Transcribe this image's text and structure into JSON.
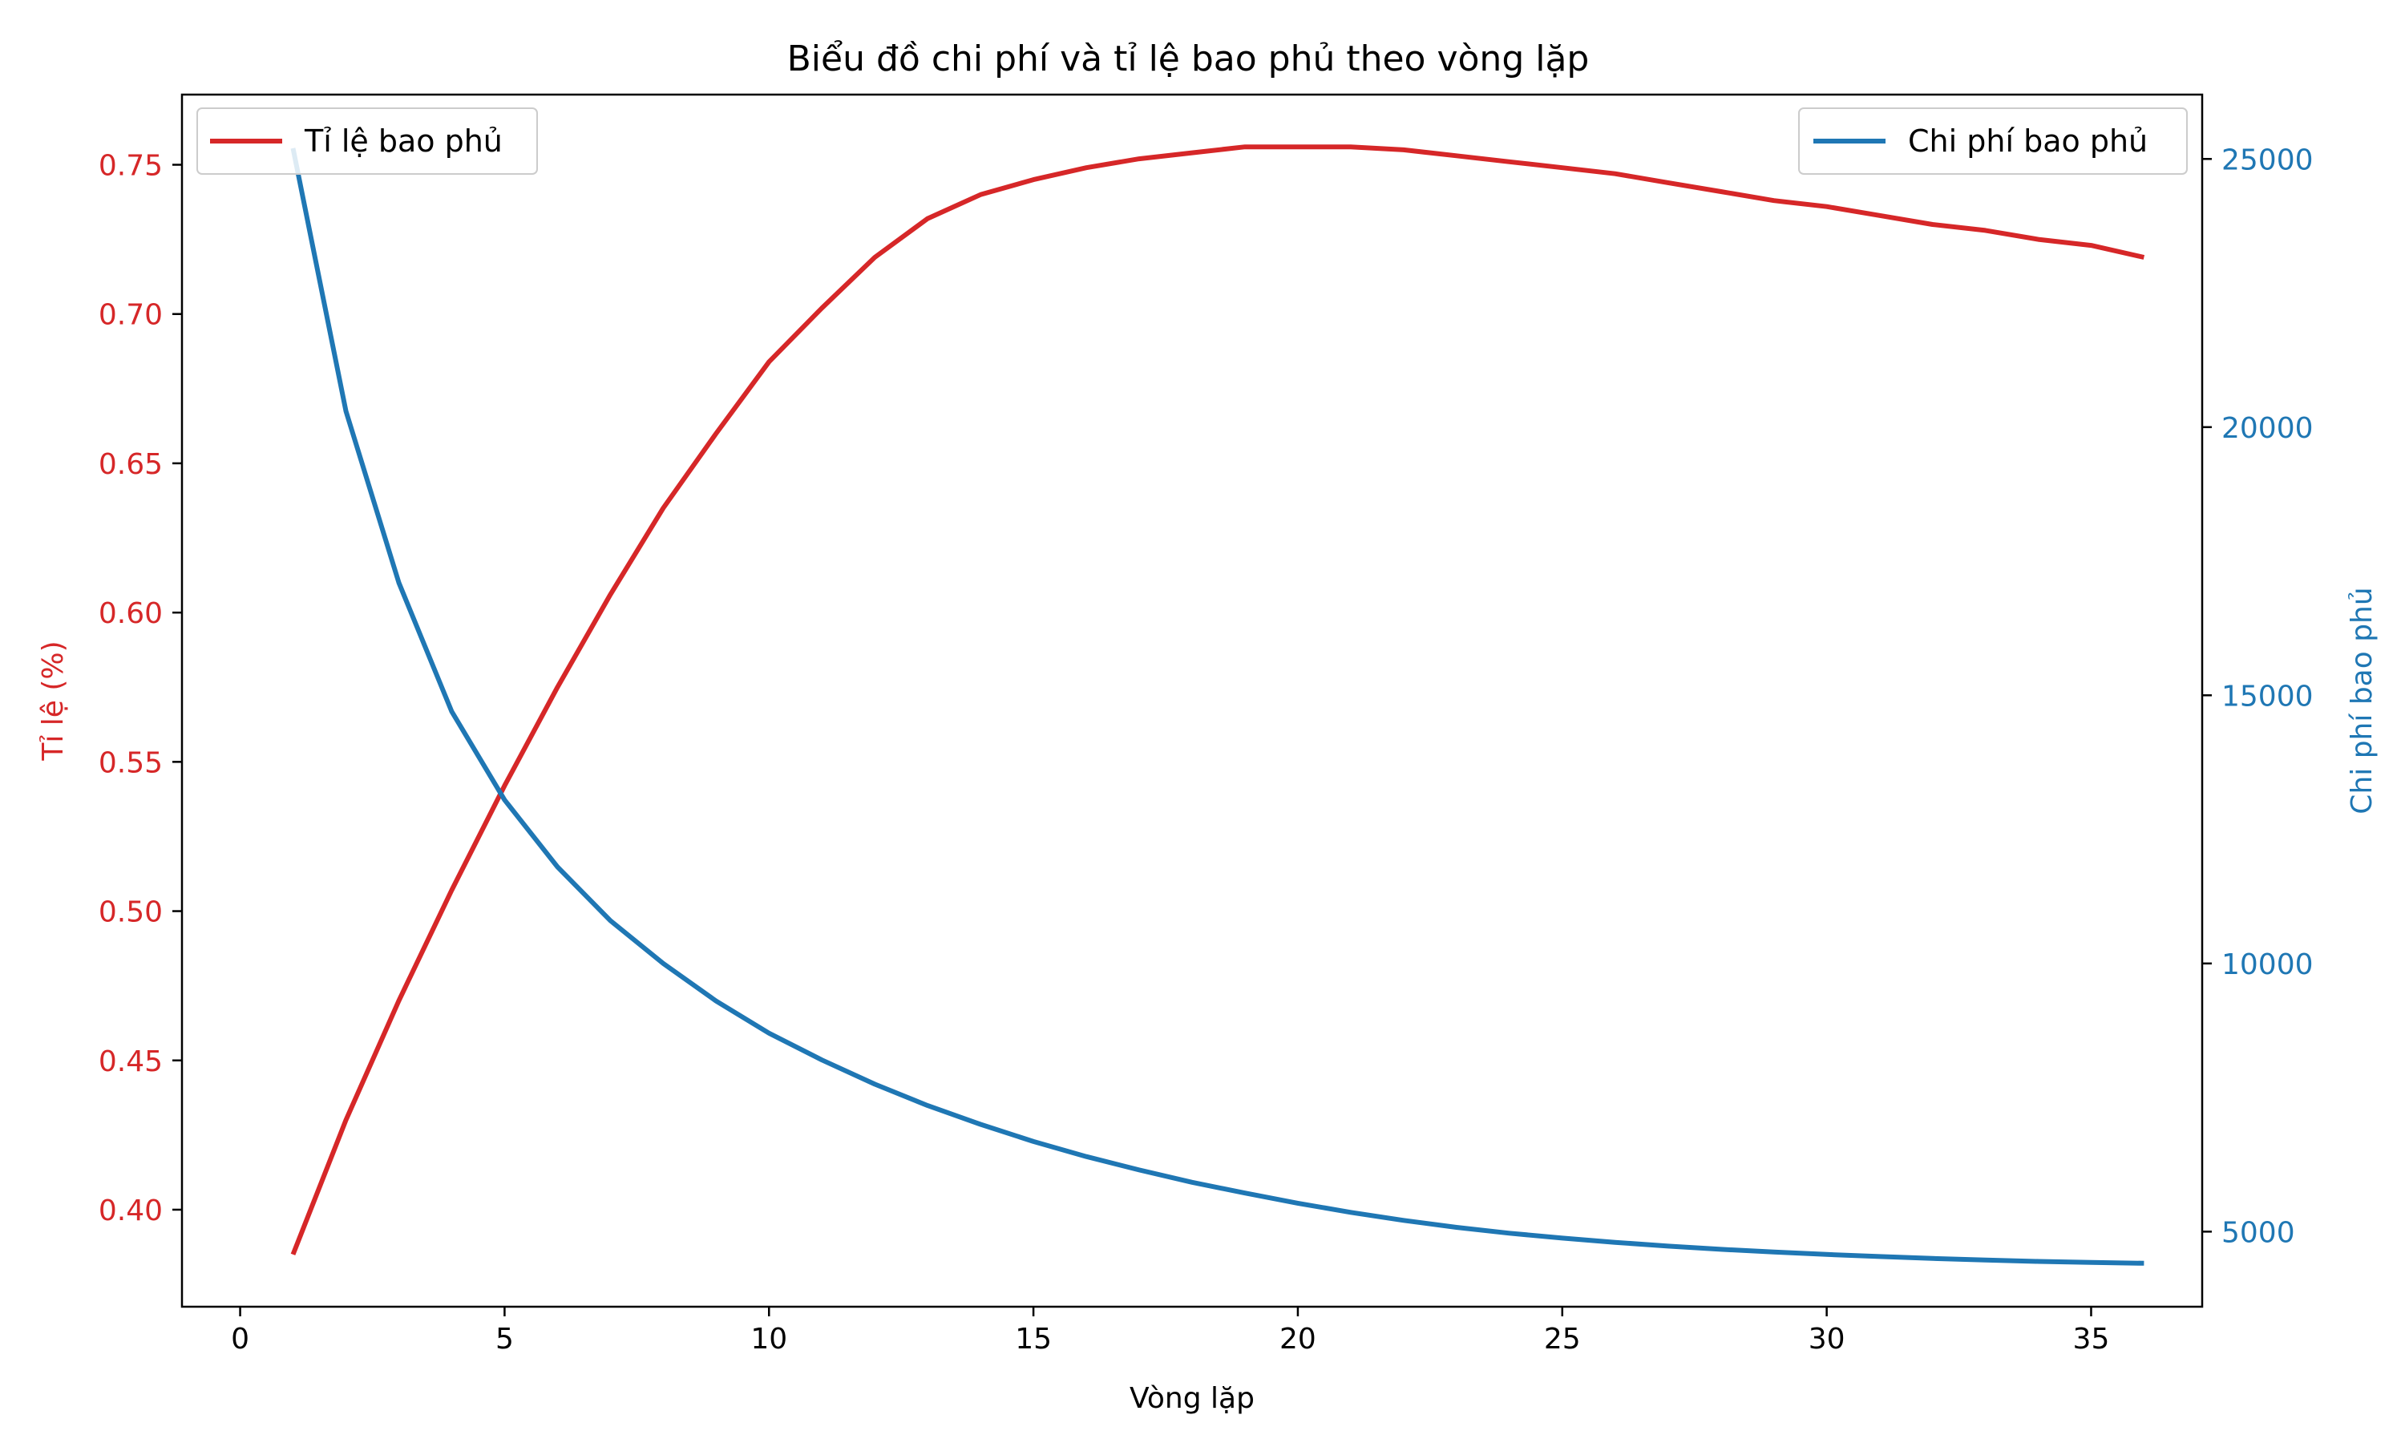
{
  "chart_data": {
    "type": "line",
    "title": "Biểu đồ chi phí và tỉ lệ bao phủ theo vòng lặp",
    "xlabel": "Vòng lặp",
    "ylabel_left": "Tỉ lệ (%)",
    "ylabel_right": "Chi phí bao phủ",
    "xlim": [
      -1.1,
      37.1
    ],
    "ylim_left": [
      0.3675,
      0.7735
    ],
    "ylim_right": [
      3600,
      26200
    ],
    "x_ticks": [
      0,
      5,
      10,
      15,
      20,
      25,
      30,
      35
    ],
    "y_left_ticks": [
      "0.40",
      "0.45",
      "0.50",
      "0.55",
      "0.60",
      "0.65",
      "0.70",
      "0.75"
    ],
    "y_right_ticks": [
      5000,
      10000,
      15000,
      20000,
      25000
    ],
    "grid": false,
    "x": [
      1,
      2,
      3,
      4,
      5,
      6,
      7,
      8,
      9,
      10,
      11,
      12,
      13,
      14,
      15,
      16,
      17,
      18,
      19,
      20,
      21,
      22,
      23,
      24,
      25,
      26,
      27,
      28,
      29,
      30,
      31,
      32,
      33,
      34,
      35,
      36
    ],
    "series": [
      {
        "name": "Tỉ lệ bao phủ",
        "axis": "left",
        "color": "#d62728",
        "values": [
          0.385,
          0.43,
          0.47,
          0.507,
          0.542,
          0.575,
          0.606,
          0.635,
          0.66,
          0.684,
          0.702,
          0.719,
          0.732,
          0.74,
          0.745,
          0.749,
          0.752,
          0.754,
          0.756,
          0.756,
          0.756,
          0.755,
          0.753,
          0.751,
          0.749,
          0.747,
          0.744,
          0.741,
          0.738,
          0.736,
          0.733,
          0.73,
          0.728,
          0.725,
          0.723,
          0.719
        ]
      },
      {
        "name": "Chi phí bao phủ",
        "axis": "right",
        "color": "#1f77b4",
        "values": [
          25200,
          20300,
          17100,
          14700,
          13050,
          11800,
          10800,
          10000,
          9300,
          8700,
          8200,
          7750,
          7350,
          7000,
          6680,
          6400,
          6150,
          5920,
          5720,
          5530,
          5360,
          5210,
          5080,
          4970,
          4880,
          4800,
          4730,
          4670,
          4620,
          4575,
          4535,
          4500,
          4470,
          4445,
          4425,
          4410
        ]
      }
    ],
    "legends": [
      {
        "placement": "top-left",
        "series": [
          "Tỉ lệ bao phủ"
        ]
      },
      {
        "placement": "top-right",
        "series": [
          "Chi phí bao phủ"
        ]
      }
    ],
    "axis_colors": {
      "left": "#d62728",
      "right": "#1f77b4",
      "x": "#000000"
    }
  }
}
